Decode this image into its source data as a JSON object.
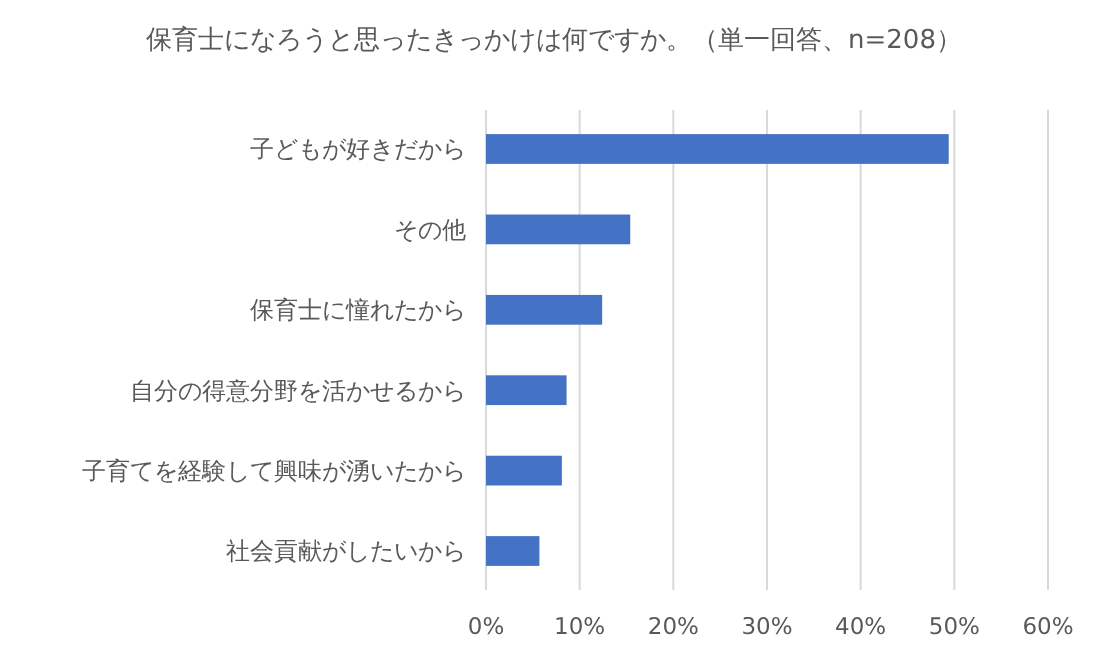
{
  "chart_data": {
    "type": "bar",
    "orientation": "horizontal",
    "title": "保育士になろうと思ったきっかけは何ですか。（単一回答、n=208）",
    "categories": [
      "子どもが好きだから",
      "その他",
      "保育士に憧れたから",
      "自分の得意分野を活かせるから",
      "子育てを経験して興味が湧いたから",
      "社会貢献がしたいから"
    ],
    "values": [
      49.4,
      15.4,
      12.4,
      8.6,
      8.1,
      5.7
    ],
    "color": "#4472c4",
    "xlim": [
      0,
      60
    ],
    "xticks": [
      {
        "value": 0,
        "label": "0%"
      },
      {
        "value": 10,
        "label": "10%"
      },
      {
        "value": 20,
        "label": "20%"
      },
      {
        "value": 30,
        "label": "30%"
      },
      {
        "value": 40,
        "label": "40%"
      },
      {
        "value": 50,
        "label": "50%"
      },
      {
        "value": 60,
        "label": "60%"
      }
    ],
    "grid": "x"
  }
}
